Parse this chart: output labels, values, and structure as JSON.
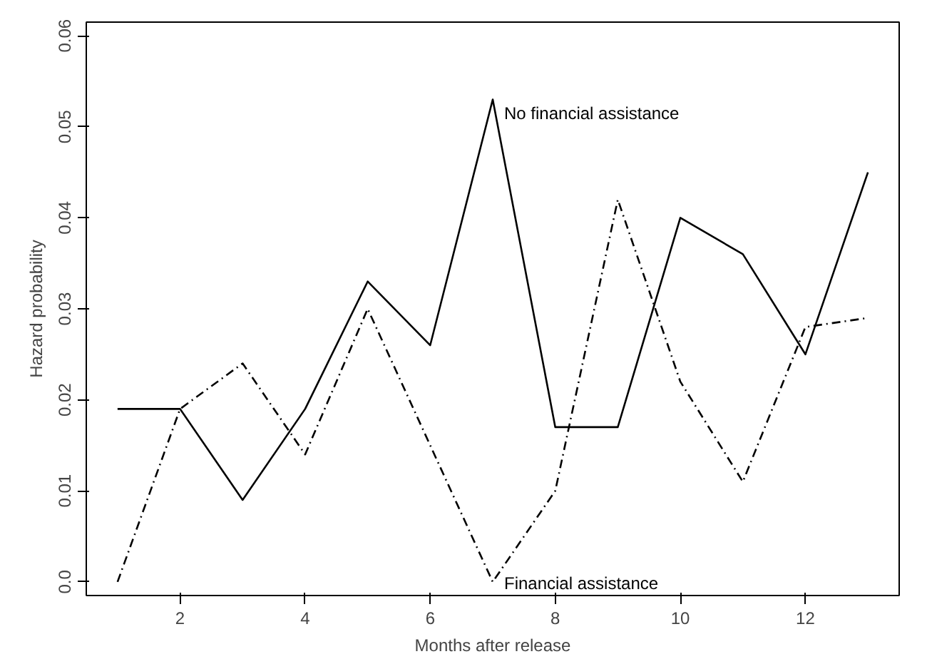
{
  "chart_data": {
    "type": "line",
    "xlabel": "Months after release",
    "ylabel": "Hazard probability",
    "x": [
      1,
      2,
      3,
      4,
      5,
      6,
      7,
      8,
      9,
      10,
      11,
      12,
      13
    ],
    "series": [
      {
        "name": "No financial assistance",
        "color": "#000000",
        "line_style": "solid",
        "values": [
          0.019,
          0.019,
          0.009,
          0.019,
          0.033,
          0.026,
          0.053,
          0.017,
          0.017,
          0.04,
          0.036,
          0.025,
          0.045
        ]
      },
      {
        "name": "Financial assistance",
        "color": "#000000",
        "line_style": "dashed",
        "values": [
          0.0,
          0.019,
          0.024,
          0.014,
          0.03,
          0.015,
          0.0,
          0.01,
          0.042,
          0.022,
          0.011,
          0.028,
          0.029
        ]
      }
    ],
    "xlim": [
      0.5,
      13.5
    ],
    "ylim": [
      -0.0015,
      0.0615
    ],
    "xticks": [
      2,
      4,
      6,
      8,
      10,
      12
    ],
    "yticks": [
      {
        "value": 0,
        "label": "0.0"
      },
      0.01,
      0.02,
      0.03,
      0.04,
      0.05,
      0.06
    ],
    "grid": false,
    "marker": "none"
  }
}
